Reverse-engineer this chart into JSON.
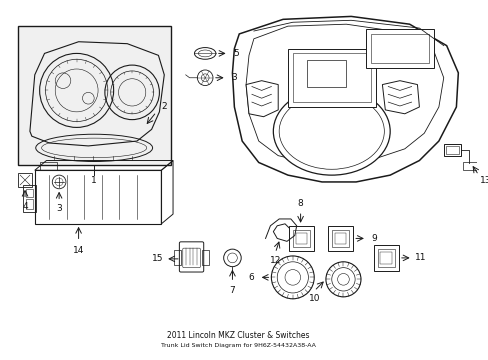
{
  "title": "2011 Lincoln MKZ Cluster & Switches",
  "subtitle": "Trunk Lid Switch Diagram for 9H6Z-54432A38-AA",
  "bg_color": "#ffffff",
  "line_color": "#1a1a1a",
  "label_color": "#111111"
}
